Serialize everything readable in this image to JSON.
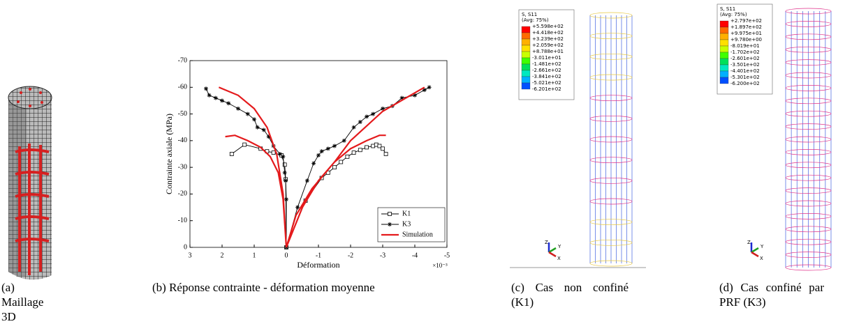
{
  "panels": [
    {
      "caption_label": "(a)",
      "caption": "Maillage 3D"
    },
    {
      "caption_label": "(b)",
      "caption": "Réponse contrainte - déformation moyenne",
      "chart_data": {
        "type": "line",
        "x_label": "Déformation",
        "x_multiplier": "×10⁻³",
        "y_label": "Contrainte axiale (MPa)",
        "xlim": [
          3,
          -5
        ],
        "xticks": [
          3,
          2,
          1,
          0,
          -1,
          -2,
          -3,
          -4,
          -5
        ],
        "ylim": [
          0,
          -70
        ],
        "yticks": [
          0,
          -10,
          -20,
          -30,
          -40,
          -50,
          -60,
          -70
        ],
        "legend": "lower right",
        "series": [
          {
            "name": "K1",
            "color": "#000000",
            "marker": "square",
            "x": [
              1.7,
              1.3,
              0.8,
              0.6,
              0.4,
              0.15,
              0.05,
              0.02,
              0,
              -0.6,
              -1.1,
              -1.3,
              -1.5,
              -1.7,
              -1.9,
              -2.1,
              -2.3,
              -2.5,
              -2.7,
              -2.8,
              -2.9,
              -3.0,
              -3.1
            ],
            "values": [
              -35,
              -38.5,
              -37,
              -36,
              -35.5,
              -34.5,
              -31,
              -25.5,
              0,
              -17.5,
              -26,
              -28,
              -30,
              -32,
              -34,
              -35.5,
              -36.5,
              -37.5,
              -38,
              -38.5,
              -38,
              -37,
              -35
            ]
          },
          {
            "name": "K3",
            "color": "#000000",
            "marker": "star",
            "x": [
              2.5,
              2.4,
              2.2,
              2.0,
              1.8,
              1.5,
              1.2,
              1.0,
              0.9,
              0.7,
              0.55,
              0.4,
              0.2,
              0.1,
              0.05,
              0.02,
              0,
              0,
              -0.35,
              -0.65,
              -0.85,
              -1.0,
              -1.1,
              -1.3,
              -1.5,
              -1.8,
              -2.1,
              -2.3,
              -2.5,
              -2.7,
              -3.0,
              -3.3,
              -3.6,
              -4.0,
              -4.3,
              -4.45
            ],
            "values": [
              -59.5,
              -57,
              -56,
              -55,
              -54,
              -52,
              -50,
              -48,
              -45,
              -44,
              -41.5,
              -38,
              -35,
              -34,
              -28,
              -25,
              -18,
              0,
              -15,
              -25,
              -31.5,
              -34.5,
              -36,
              -37,
              -38,
              -40,
              -45,
              -47,
              -49,
              -50,
              -52,
              -53,
              -56,
              -57,
              -59,
              -60
            ]
          },
          {
            "name": "Simulation",
            "color": "#e41a1c",
            "marker": "none",
            "x": [
              2.1,
              1.5,
              1,
              0.6,
              0.3,
              0.1,
              0,
              null,
              1.9,
              1.6,
              1.2,
              0.8,
              0.5,
              0.25,
              0.1,
              0,
              null,
              0,
              -0.5,
              -1,
              -1.5,
              -2,
              -2.5,
              -2.9,
              -3.1,
              null,
              0,
              -0.3,
              -0.8,
              -1.5,
              -2,
              -3,
              -4.3
            ],
            "values": [
              -60,
              -57,
              -52,
              -45,
              -35,
              -20,
              0,
              null,
              -41.5,
              -42,
              -40,
              -37.5,
              -34,
              -28,
              -18,
              0,
              null,
              0,
              -15,
              -25,
              -32,
              -37,
              -40,
              -42,
              -42,
              null,
              0,
              -12,
              -22,
              -32,
              -40,
              -51,
              -60
            ]
          }
        ]
      }
    },
    {
      "caption_label": "(c)",
      "caption": "Cas non confiné (K1)",
      "legend": {
        "title": "S, S11",
        "subtitle": "(Avg: 75%)",
        "labels": [
          "+5.598e+02",
          "+4.418e+02",
          "+3.239e+02",
          "+2.059e+02",
          "+8.788e+01",
          "-3.011e+01",
          "-1.481e+02",
          "-2.661e+02",
          "-3.841e+02",
          "-5.021e+02",
          "-6.201e+02"
        ]
      },
      "axes": [
        "Z",
        "Y",
        "X"
      ]
    },
    {
      "caption_label": "(d)",
      "caption": "Cas confiné par PRF (K3)",
      "legend": {
        "title": "S, S11",
        "subtitle": "(Avg: 75%)",
        "labels": [
          "+2.797e+02",
          "+1.897e+02",
          "+9.975e+01",
          "+9.780e+00",
          "-8.019e+01",
          "-1.702e+02",
          "-2.601e+02",
          "-3.501e+02",
          "-4.401e+02",
          "-5.301e+02",
          "-6.200e+02"
        ]
      },
      "axes": [
        "Z",
        "Y",
        "X"
      ]
    }
  ]
}
